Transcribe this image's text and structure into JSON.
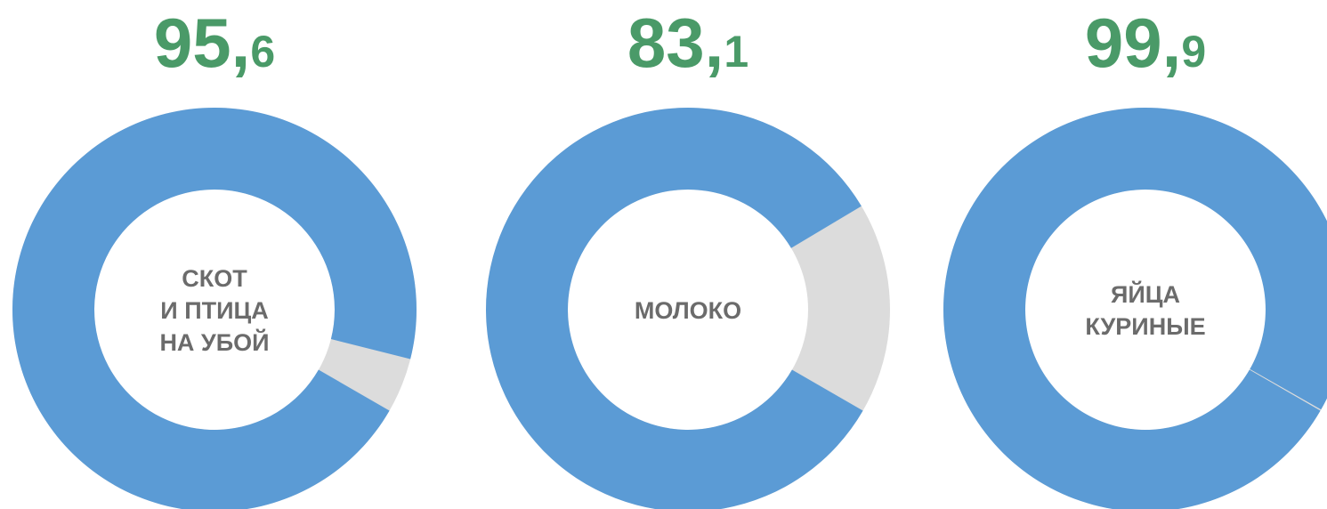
{
  "chart_data": [
    {
      "type": "pie",
      "label": [
        "СКОТ",
        "И ПТИЦА",
        "НА УБОЙ"
      ],
      "values": [
        95.6
      ],
      "value_labels": [
        "95,6"
      ],
      "ylim": [
        0,
        100
      ],
      "color": "#5b9bd5",
      "rest_color": "#dcdcdc",
      "label_color": "#4a9a68"
    },
    {
      "type": "pie",
      "label": [
        "МОЛОКО"
      ],
      "values": [
        83.1
      ],
      "value_labels": [
        "83,1"
      ],
      "ylim": [
        0,
        100
      ],
      "color": "#5b9bd5",
      "rest_color": "#dcdcdc",
      "label_color": "#4a9a68"
    },
    {
      "type": "pie",
      "label": [
        "ЯЙЦА",
        "КУРИНЫЕ"
      ],
      "values": [
        99.9
      ],
      "value_labels": [
        "99,9"
      ],
      "ylim": [
        0,
        100
      ],
      "color": "#5b9bd5",
      "rest_color": "#dcdcdc",
      "label_color": "#4a9a68"
    }
  ]
}
